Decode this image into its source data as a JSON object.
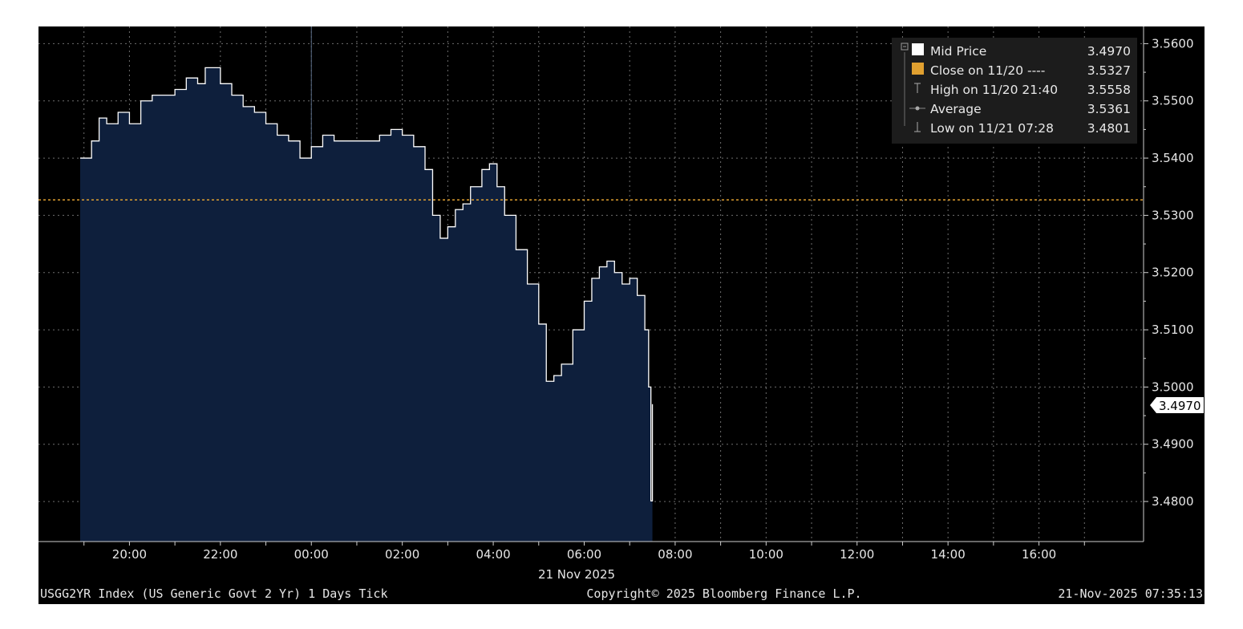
{
  "chart_data": {
    "type": "area",
    "series": [
      {
        "name": "Mid Price",
        "x": [
          "18:55",
          "19:10",
          "19:20",
          "19:30",
          "19:45",
          "20:00",
          "20:15",
          "20:30",
          "20:45",
          "21:00",
          "21:15",
          "21:30",
          "21:40",
          "22:00",
          "22:15",
          "22:30",
          "22:45",
          "23:00",
          "23:15",
          "23:30",
          "23:45",
          "00:00",
          "00:15",
          "00:30",
          "01:00",
          "01:30",
          "01:45",
          "02:00",
          "02:15",
          "02:30",
          "02:40",
          "02:50",
          "03:00",
          "03:10",
          "03:20",
          "03:30",
          "03:45",
          "03:55",
          "04:05",
          "04:15",
          "04:30",
          "04:45",
          "05:00",
          "05:10",
          "05:20",
          "05:30",
          "05:45",
          "06:00",
          "06:10",
          "06:20",
          "06:30",
          "06:40",
          "06:50",
          "07:00",
          "07:10",
          "07:20",
          "07:25",
          "07:28",
          "07:30"
        ],
        "values": [
          3.54,
          3.543,
          3.547,
          3.546,
          3.548,
          3.546,
          3.55,
          3.551,
          3.551,
          3.552,
          3.554,
          3.553,
          3.5558,
          3.553,
          3.551,
          3.549,
          3.548,
          3.546,
          3.544,
          3.543,
          3.54,
          3.542,
          3.544,
          3.543,
          3.543,
          3.544,
          3.545,
          3.544,
          3.542,
          3.538,
          3.53,
          3.526,
          3.528,
          3.531,
          3.532,
          3.535,
          3.538,
          3.539,
          3.535,
          3.53,
          3.524,
          3.518,
          3.511,
          3.501,
          3.502,
          3.504,
          3.51,
          3.515,
          3.519,
          3.521,
          3.522,
          3.52,
          3.518,
          3.519,
          3.516,
          3.51,
          3.5,
          3.4801,
          3.497
        ]
      }
    ],
    "close_line": 3.5327,
    "y_ticks": [
      "3.5600",
      "3.5500",
      "3.5400",
      "3.5300",
      "3.5200",
      "3.5100",
      "3.5000",
      "3.4900",
      "3.4800"
    ],
    "ylim": [
      3.473,
      3.563
    ],
    "x_ticks": [
      "20:00",
      "22:00",
      "00:00",
      "02:00",
      "04:00",
      "06:00",
      "08:00",
      "10:00",
      "12:00",
      "14:00",
      "16:00"
    ],
    "x_tick_hours": [
      20,
      22,
      24,
      26,
      28,
      30,
      32,
      34,
      36,
      38,
      40
    ],
    "x_gridlines_hours": [
      19,
      20,
      21,
      22,
      23,
      24,
      25,
      26,
      27,
      28,
      29,
      30,
      31,
      32,
      33,
      34,
      35,
      36,
      37,
      38,
      39,
      40,
      41
    ],
    "xlim_hours": [
      18,
      42.3
    ],
    "date_label": "21 Nov 2025",
    "last_value_label": "3.4970",
    "legend_placement": "top-right",
    "grid": true,
    "colors": {
      "background": "#000000",
      "line": "#ffffff",
      "area_fill": "#0e1f3c",
      "close_line": "#e0a030",
      "grid": "#6e6e6e",
      "axis": "#cfcfcf"
    }
  },
  "legend": {
    "items": [
      {
        "label": "Mid Price",
        "value": "3.4970",
        "marker": "white-square"
      },
      {
        "label": "Close on 11/20 ----",
        "value": "3.5327",
        "marker": "orange-square"
      },
      {
        "label": "High on 11/20 21:40",
        "value": "3.5558",
        "marker": "high-marker"
      },
      {
        "label": "Average",
        "value": "3.5361",
        "marker": "average-marker"
      },
      {
        "label": "Low on 11/21 07:28",
        "value": "3.4801",
        "marker": "low-marker"
      }
    ]
  },
  "footer": {
    "left": "USGG2YR Index (US Generic Govt 2 Yr) 1 Days Tick",
    "center": "Copyright© 2025 Bloomberg Finance L.P.",
    "right": "21-Nov-2025 07:35:13"
  }
}
